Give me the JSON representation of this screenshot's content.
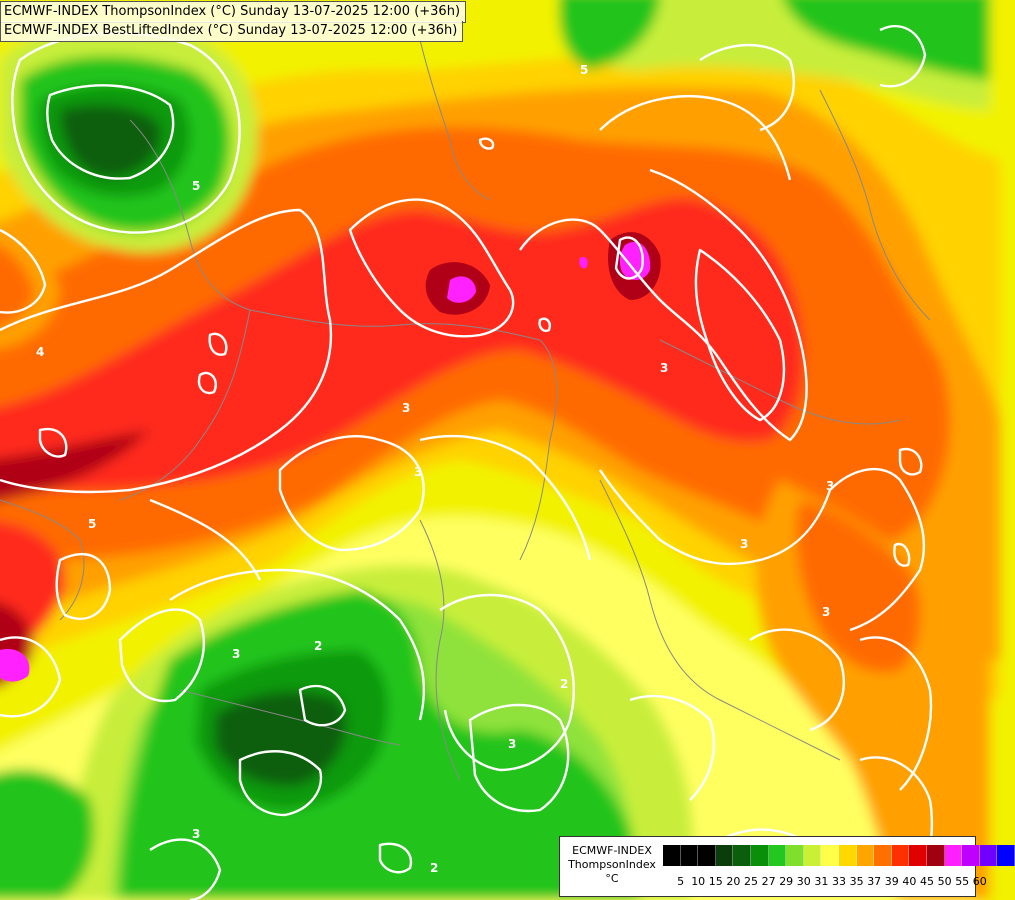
{
  "header": {
    "title_line_1": "ECMWF-INDEX ThompsonIndex (°C) Sunday 13-07-2025 12:00 (+36h)",
    "title_line_2": "ECMWF-INDEX BestLiftedIndex (°C) Sunday 13-07-2025 12:00 (+36h)"
  },
  "legend": {
    "title": "ECMWF-INDEX\nThompsonIndex\n°C",
    "levels": [
      "5",
      "10",
      "15",
      "20",
      "25",
      "27",
      "29",
      "30",
      "31",
      "33",
      "35",
      "37",
      "39",
      "40",
      "45",
      "50",
      "55",
      "60"
    ],
    "colors": [
      "#000000",
      "#000000",
      "#000000",
      "#0a3d0a",
      "#0b5e0b",
      "#0a8f0a",
      "#22c81e",
      "#7fdf2a",
      "#c9f035",
      "#ffff4a",
      "#ffd800",
      "#ffa500",
      "#ff7000",
      "#ff3000",
      "#e00000",
      "#a00010",
      "#ff20ff",
      "#c000ff",
      "#7000ff",
      "#0000ff"
    ]
  },
  "map": {
    "field_colors": {
      "yellow": "#f2f200",
      "light_yellow": "#ffff60",
      "gold": "#ffd200",
      "orange": "#ffa000",
      "dark_orange": "#ff6a00",
      "red": "#ff2a1a",
      "dark_red": "#b00018",
      "magenta": "#ff22ff",
      "yellow_green": "#c8ee3a",
      "light_green": "#8fe23a",
      "green": "#22c41e",
      "mid_green": "#0c9a0c",
      "dark_green": "#0a5e0a"
    },
    "contour_color": "#ffffff",
    "border_color": "#888888",
    "contour_labels": [
      "5",
      "4",
      "3",
      "3",
      "3",
      "3",
      "3",
      "2",
      "3",
      "2",
      "3",
      "5",
      "5",
      "3",
      "3",
      "2"
    ]
  }
}
